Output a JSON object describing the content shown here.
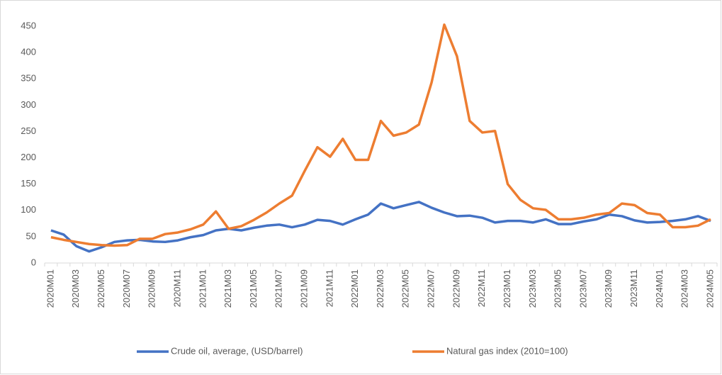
{
  "chart_data": {
    "type": "line",
    "categories": [
      "2020M01",
      null,
      "2020M03",
      null,
      "2020M05",
      null,
      "2020M07",
      null,
      "2020M09",
      null,
      "2020M11",
      null,
      "2021M01",
      null,
      "2021M03",
      null,
      "2021M05",
      null,
      "2021M07",
      null,
      "2021M09",
      null,
      "2021M11",
      null,
      "2022M01",
      null,
      "2022M03",
      null,
      "2022M05",
      null,
      "2022M07",
      null,
      "2022M09",
      null,
      "2022M11",
      null,
      "2023M01",
      null,
      "2023M03",
      null,
      "2023M05",
      null,
      "2023M07",
      null,
      "2023M09",
      null,
      "2023M11",
      null,
      "2024M01",
      null,
      "2024M03",
      null,
      "2024M05"
    ],
    "series": [
      {
        "name": "Crude oil, average, (USD/barrel)",
        "color": "#4472c4",
        "values": [
          62,
          54,
          32,
          22,
          30,
          40,
          43,
          44,
          41,
          40,
          43,
          49,
          53,
          62,
          65,
          62,
          67,
          71,
          73,
          68,
          73,
          82,
          80,
          73,
          83,
          92,
          113,
          104,
          110,
          116,
          105,
          96,
          89,
          90,
          86,
          77,
          80,
          80,
          77,
          83,
          74,
          74,
          79,
          83,
          92,
          89,
          81,
          77,
          78,
          80,
          83,
          89,
          80
        ]
      },
      {
        "name": "Natural gas index (2010=100)",
        "color": "#ed7d31",
        "values": [
          49,
          44,
          40,
          36,
          34,
          33,
          34,
          46,
          46,
          55,
          58,
          64,
          73,
          98,
          65,
          70,
          82,
          96,
          113,
          128,
          175,
          220,
          202,
          236,
          196,
          196,
          270,
          242,
          248,
          263,
          343,
          453,
          393,
          270,
          248,
          251,
          150,
          120,
          104,
          101,
          83,
          83,
          86,
          92,
          95,
          113,
          110,
          95,
          92,
          68,
          68,
          71,
          83
        ]
      }
    ],
    "ylim": [
      0,
      470
    ],
    "yticks": [
      0,
      50,
      100,
      150,
      200,
      250,
      300,
      350,
      400,
      450
    ],
    "grid": false,
    "legend": "bottom"
  }
}
